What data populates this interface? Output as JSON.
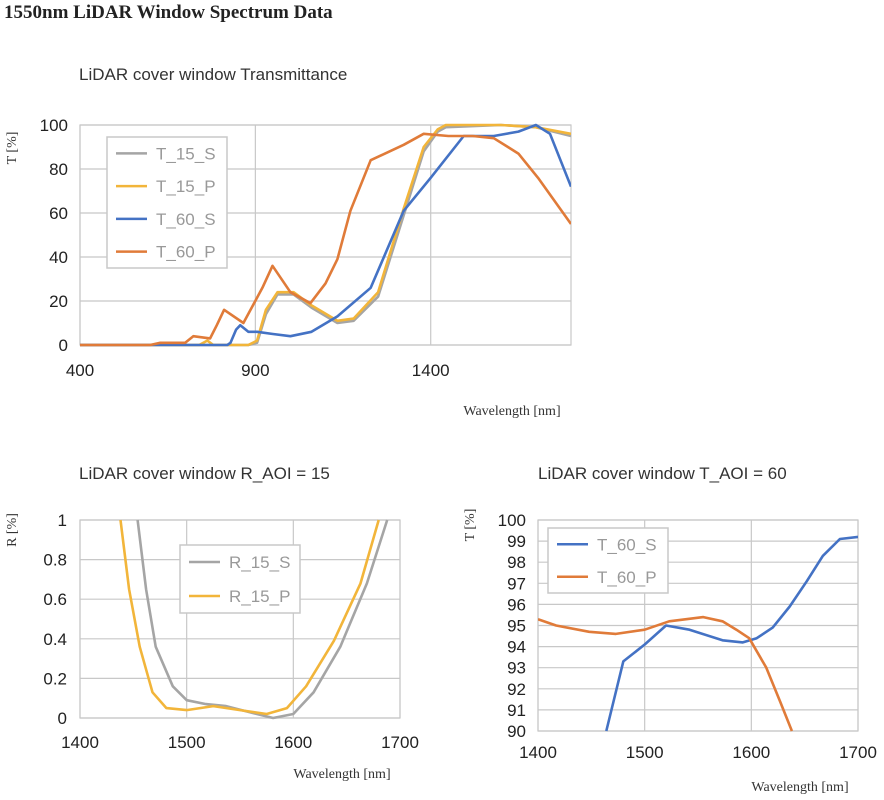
{
  "page_title": "1550nm LiDAR Window Spectrum Data",
  "colors": {
    "T_15_S": "#a5a5a5",
    "T_15_P": "#f2b53a",
    "T_60_S": "#4472c4",
    "T_60_P": "#e07b39",
    "grid": "#c8c8c8"
  },
  "chart_data": [
    {
      "type": "line",
      "title": "LiDAR cover window Transmittance",
      "xlabel": "Wavelength [nm]",
      "ylabel": "T [%]",
      "xlim": [
        400,
        1800
      ],
      "ylim": [
        0,
        100
      ],
      "xticks": [
        400,
        900,
        1400
      ],
      "yticks": [
        0,
        20,
        40,
        60,
        80,
        100
      ],
      "grid": true,
      "legend": "top-left",
      "series": [
        {
          "name": "T_15_S",
          "color": "#a5a5a5",
          "x": [
            400,
            740,
            760,
            780,
            880,
            905,
            930,
            963,
            1009,
            1060,
            1134,
            1180,
            1250,
            1323,
            1380,
            1420,
            1443,
            1600,
            1700,
            1800
          ],
          "y": [
            0,
            0,
            0,
            0,
            0,
            1,
            14,
            23,
            23,
            17,
            10,
            11,
            22,
            59,
            88,
            97,
            99,
            100,
            99,
            95
          ]
        },
        {
          "name": "T_15_P",
          "color": "#f2b53a",
          "x": [
            400,
            740,
            763,
            780,
            880,
            905,
            930,
            963,
            1009,
            1060,
            1134,
            1180,
            1250,
            1323,
            1380,
            1420,
            1443,
            1600,
            1700,
            1800
          ],
          "y": [
            0,
            0,
            2,
            0,
            0,
            2,
            16,
            24,
            24,
            18,
            11,
            12,
            24,
            62,
            90,
            98,
            100,
            100,
            99,
            96
          ]
        },
        {
          "name": "T_60_S",
          "color": "#4472c4",
          "x": [
            400,
            820,
            829,
            845,
            857,
            880,
            905,
            950,
            1000,
            1060,
            1134,
            1229,
            1323,
            1400,
            1494,
            1580,
            1650,
            1700,
            1740,
            1800
          ],
          "y": [
            0,
            0,
            1,
            7,
            9,
            6,
            6,
            5,
            4,
            6,
            13,
            26,
            61,
            76,
            95,
            95,
            97,
            100,
            96,
            72
          ]
        },
        {
          "name": "T_60_P",
          "color": "#e07b39",
          "x": [
            400,
            600,
            629,
            700,
            723,
            771,
            790,
            811,
            866,
            920,
            949,
            1000,
            1057,
            1100,
            1134,
            1171,
            1229,
            1323,
            1380,
            1450,
            1520,
            1580,
            1650,
            1706,
            1800
          ],
          "y": [
            0,
            0,
            1,
            1,
            4,
            3,
            9,
            16,
            10,
            26,
            36,
            24,
            19,
            28,
            39,
            61,
            84,
            91,
            96,
            95,
            95,
            94,
            87,
            76,
            55
          ]
        }
      ]
    },
    {
      "type": "line",
      "title": "LiDAR cover window R_AOI = 15",
      "xlabel": "Wavelength [nm]",
      "ylabel": "R [%]",
      "xlim": [
        1400,
        1700
      ],
      "ylim": [
        0,
        1
      ],
      "xticks": [
        1400,
        1500,
        1600,
        1700
      ],
      "yticks": [
        0,
        0.2,
        0.4,
        0.6,
        0.8,
        1
      ],
      "grid": true,
      "legend": "top-center",
      "series": [
        {
          "name": "R_15_S",
          "color": "#a5a5a5",
          "x": [
            1454,
            1462,
            1471,
            1487,
            1500,
            1518,
            1537,
            1562,
            1581,
            1600,
            1619,
            1644,
            1669,
            1688
          ],
          "y": [
            1,
            0.65,
            0.36,
            0.16,
            0.09,
            0.07,
            0.06,
            0.025,
            0,
            0.02,
            0.13,
            0.36,
            0.68,
            1
          ]
        },
        {
          "name": "R_15_P",
          "color": "#f2b53a",
          "x": [
            1438,
            1446,
            1456,
            1468,
            1481,
            1500,
            1525,
            1550,
            1575,
            1594,
            1612,
            1638,
            1663,
            1680
          ],
          "y": [
            1,
            0.65,
            0.36,
            0.13,
            0.05,
            0.04,
            0.06,
            0.04,
            0.02,
            0.05,
            0.16,
            0.39,
            0.68,
            1
          ]
        }
      ]
    },
    {
      "type": "line",
      "title": "LiDAR cover window T_AOI = 60",
      "xlabel": "Wavelength [nm]",
      "ylabel": "T [%]",
      "xlim": [
        1400,
        1700
      ],
      "ylim": [
        90,
        100
      ],
      "xticks": [
        1400,
        1500,
        1600,
        1700
      ],
      "yticks": [
        90,
        91,
        92,
        93,
        94,
        95,
        96,
        97,
        98,
        99,
        100
      ],
      "grid": true,
      "legend": "top-left",
      "series": [
        {
          "name": "T_60_S",
          "color": "#4472c4",
          "x": [
            1464,
            1480,
            1500,
            1520,
            1542,
            1573,
            1592,
            1605,
            1620,
            1636,
            1652,
            1667,
            1683,
            1700
          ],
          "y": [
            90,
            93.3,
            94.1,
            95.0,
            94.8,
            94.3,
            94.2,
            94.4,
            94.9,
            95.9,
            97.1,
            98.3,
            99.1,
            99.2
          ]
        },
        {
          "name": "T_60_P",
          "color": "#e07b39",
          "x": [
            1400,
            1417,
            1448,
            1473,
            1500,
            1523,
            1555,
            1573,
            1586,
            1598,
            1614,
            1627,
            1638
          ],
          "y": [
            95.3,
            95.0,
            94.7,
            94.6,
            94.8,
            95.2,
            95.4,
            95.2,
            94.8,
            94.4,
            93.0,
            91.4,
            90
          ]
        }
      ]
    }
  ]
}
